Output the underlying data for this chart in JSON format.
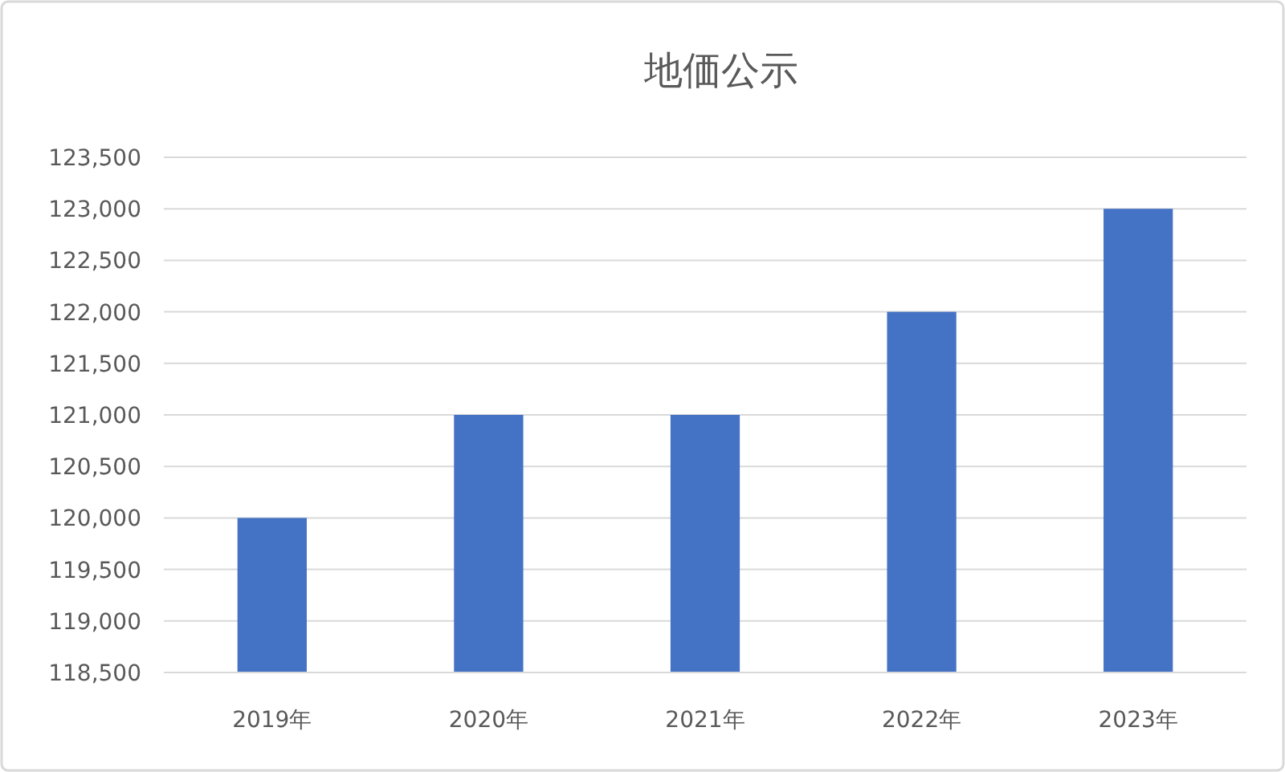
{
  "chart_data": {
    "type": "bar",
    "title": "地価公示",
    "categories": [
      "2019年",
      "2020年",
      "2021年",
      "2022年",
      "2023年"
    ],
    "values": [
      120000,
      121000,
      121000,
      122000,
      123000
    ],
    "color": "#4472c4",
    "ylim": [
      118500,
      123500
    ],
    "yticks": [
      {
        "value": 118500,
        "label": "118,500"
      },
      {
        "value": 119000,
        "label": "119,000"
      },
      {
        "value": 119500,
        "label": "119,500"
      },
      {
        "value": 120000,
        "label": "120,000"
      },
      {
        "value": 120500,
        "label": "120,500"
      },
      {
        "value": 121000,
        "label": "121,000"
      },
      {
        "value": 121500,
        "label": "121,500"
      },
      {
        "value": 122000,
        "label": "122,000"
      },
      {
        "value": 122500,
        "label": "122,500"
      },
      {
        "value": 123000,
        "label": "123,000"
      },
      {
        "value": 123500,
        "label": "123,500"
      }
    ],
    "grid": "y"
  }
}
